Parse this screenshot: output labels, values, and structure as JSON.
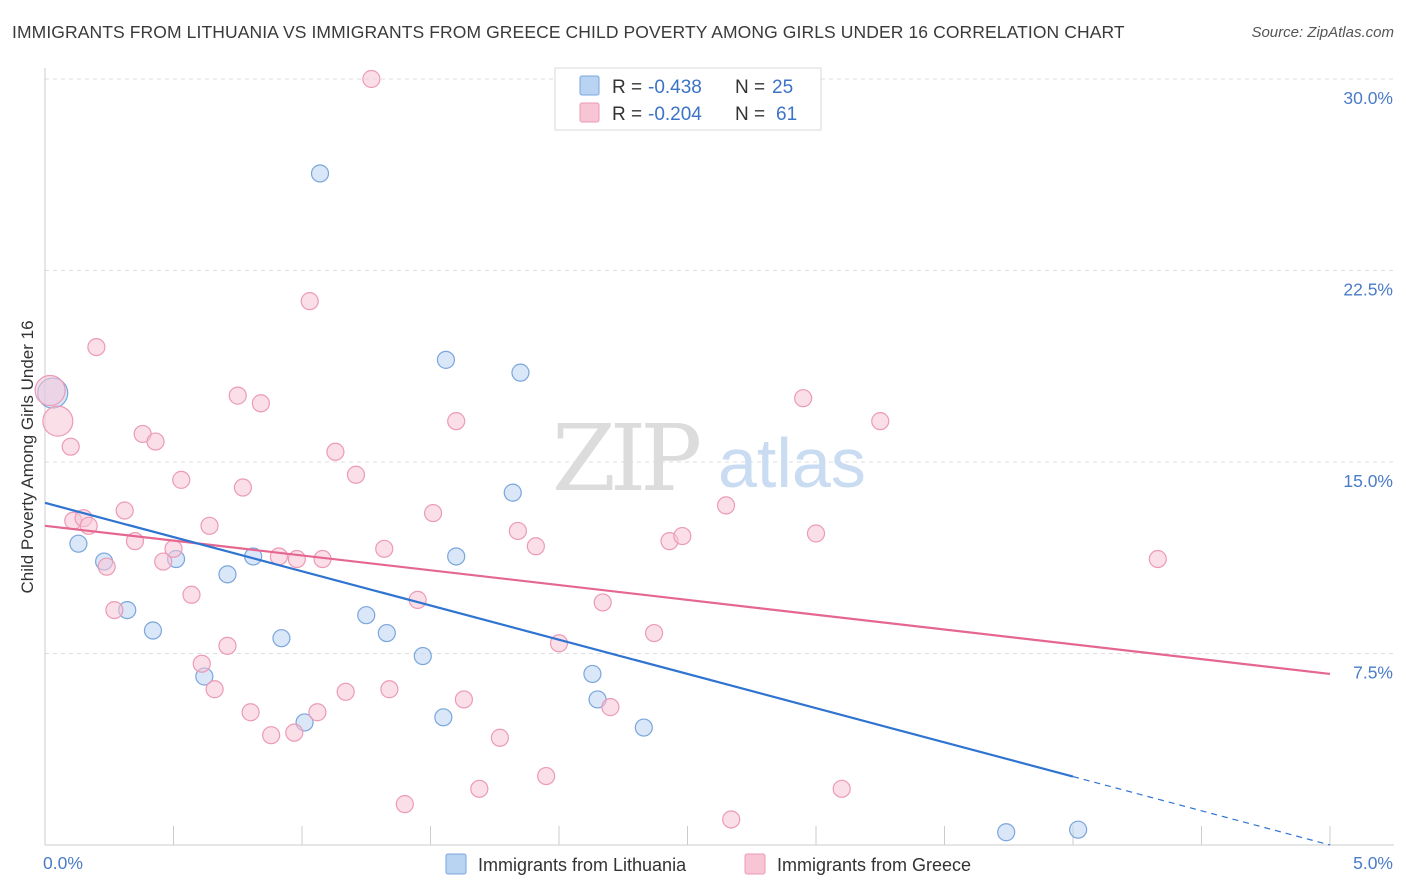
{
  "title": "IMMIGRANTS FROM LITHUANIA VS IMMIGRANTS FROM GREECE CHILD POVERTY AMONG GIRLS UNDER 16 CORRELATION CHART",
  "source": "Source: ZipAtlas.com",
  "watermark": {
    "zip": "ZIP",
    "atlas": "atlas"
  },
  "stats": [
    {
      "r_label": "R =",
      "r_value": "-0.438",
      "n_label": "N =",
      "n_value": "25"
    },
    {
      "r_label": "R =",
      "r_value": "-0.204",
      "n_label": "N =",
      "n_value": "61"
    }
  ],
  "colors": {
    "lithuania_fill": "#b9d3f3",
    "lithuania_stroke": "#7aa6dc",
    "lithuania_line": "#2f74d0",
    "greece_fill": "#f8c5d5",
    "greece_stroke": "#ec9ab6",
    "greece_line": "#e5668f",
    "grid": "#dddddd",
    "tick_label": "#4a7cc7"
  },
  "chart_data": {
    "type": "scatter",
    "title": "IMMIGRANTS FROM LITHUANIA VS IMMIGRANTS FROM GREECE CHILD POVERTY AMONG GIRLS UNDER 16 CORRELATION CHART",
    "xlabel": "",
    "ylabel": "Child Poverty Among Girls Under 16",
    "xlim": [
      0,
      5.0
    ],
    "ylim": [
      0,
      30.0
    ],
    "y_ticks": [
      7.5,
      15.0,
      22.5,
      30.0
    ],
    "y_tick_labels": [
      "7.5%",
      "15.0%",
      "22.5%",
      "30.0%"
    ],
    "x_tick_labels": [
      "0.0%",
      "5.0%"
    ],
    "legend": [
      "Immigrants from Lithuania",
      "Immigrants from Greece"
    ],
    "series": [
      {
        "name": "Immigrants from Lithuania",
        "r": -0.438,
        "n": 25,
        "trend": {
          "x0": 0.0,
          "y0": 13.4,
          "x1": 5.0,
          "y1": 0.0,
          "solid_until": 4.0
        },
        "points": [
          {
            "x": 0.03,
            "y": 17.7,
            "big": true
          },
          {
            "x": 0.13,
            "y": 11.8
          },
          {
            "x": 0.23,
            "y": 11.1
          },
          {
            "x": 0.32,
            "y": 9.2
          },
          {
            "x": 0.42,
            "y": 8.4
          },
          {
            "x": 0.51,
            "y": 11.2
          },
          {
            "x": 0.62,
            "y": 6.6
          },
          {
            "x": 0.71,
            "y": 10.6
          },
          {
            "x": 0.81,
            "y": 11.3
          },
          {
            "x": 0.92,
            "y": 8.1
          },
          {
            "x": 1.01,
            "y": 4.8
          },
          {
            "x": 1.07,
            "y": 26.3
          },
          {
            "x": 1.25,
            "y": 9.0
          },
          {
            "x": 1.33,
            "y": 8.3
          },
          {
            "x": 1.47,
            "y": 7.4
          },
          {
            "x": 1.55,
            "y": 5.0
          },
          {
            "x": 1.56,
            "y": 19.0
          },
          {
            "x": 1.6,
            "y": 11.3
          },
          {
            "x": 1.82,
            "y": 13.8
          },
          {
            "x": 1.85,
            "y": 18.5
          },
          {
            "x": 2.13,
            "y": 6.7
          },
          {
            "x": 2.15,
            "y": 5.7
          },
          {
            "x": 2.33,
            "y": 4.6
          },
          {
            "x": 3.74,
            "y": 0.5
          },
          {
            "x": 4.02,
            "y": 0.6
          }
        ]
      },
      {
        "name": "Immigrants from Greece",
        "r": -0.204,
        "n": 61,
        "trend": {
          "x0": 0.0,
          "y0": 12.5,
          "x1": 5.0,
          "y1": 6.7
        },
        "points": [
          {
            "x": 0.02,
            "y": 17.8,
            "big": true
          },
          {
            "x": 0.05,
            "y": 16.6,
            "big": true
          },
          {
            "x": 0.1,
            "y": 15.6
          },
          {
            "x": 0.11,
            "y": 12.7
          },
          {
            "x": 0.15,
            "y": 12.8
          },
          {
            "x": 0.17,
            "y": 12.5
          },
          {
            "x": 0.2,
            "y": 19.5
          },
          {
            "x": 0.24,
            "y": 10.9
          },
          {
            "x": 0.27,
            "y": 9.2
          },
          {
            "x": 0.31,
            "y": 13.1
          },
          {
            "x": 0.35,
            "y": 11.9
          },
          {
            "x": 0.38,
            "y": 16.1
          },
          {
            "x": 0.43,
            "y": 15.8
          },
          {
            "x": 0.46,
            "y": 11.1
          },
          {
            "x": 0.5,
            "y": 11.6
          },
          {
            "x": 0.53,
            "y": 14.3
          },
          {
            "x": 0.57,
            "y": 9.8
          },
          {
            "x": 0.61,
            "y": 7.1
          },
          {
            "x": 0.64,
            "y": 12.5
          },
          {
            "x": 0.66,
            "y": 6.1
          },
          {
            "x": 0.71,
            "y": 7.8
          },
          {
            "x": 0.75,
            "y": 17.6
          },
          {
            "x": 0.77,
            "y": 14.0
          },
          {
            "x": 0.8,
            "y": 5.2
          },
          {
            "x": 0.84,
            "y": 17.3
          },
          {
            "x": 0.88,
            "y": 4.3
          },
          {
            "x": 0.91,
            "y": 11.3
          },
          {
            "x": 0.97,
            "y": 4.4
          },
          {
            "x": 0.98,
            "y": 11.2
          },
          {
            "x": 1.03,
            "y": 21.3
          },
          {
            "x": 1.06,
            "y": 5.2
          },
          {
            "x": 1.08,
            "y": 11.2
          },
          {
            "x": 1.13,
            "y": 15.4
          },
          {
            "x": 1.17,
            "y": 6.0
          },
          {
            "x": 1.21,
            "y": 14.5
          },
          {
            "x": 1.27,
            "y": 30.0
          },
          {
            "x": 1.32,
            "y": 11.6
          },
          {
            "x": 1.34,
            "y": 6.1
          },
          {
            "x": 1.4,
            "y": 1.6
          },
          {
            "x": 1.45,
            "y": 9.6
          },
          {
            "x": 1.51,
            "y": 13.0
          },
          {
            "x": 1.6,
            "y": 16.6
          },
          {
            "x": 1.63,
            "y": 5.7
          },
          {
            "x": 1.69,
            "y": 2.2
          },
          {
            "x": 1.77,
            "y": 4.2
          },
          {
            "x": 1.84,
            "y": 12.3
          },
          {
            "x": 1.91,
            "y": 11.7
          },
          {
            "x": 1.95,
            "y": 2.7
          },
          {
            "x": 2.0,
            "y": 7.9
          },
          {
            "x": 2.17,
            "y": 9.5
          },
          {
            "x": 2.2,
            "y": 5.4
          },
          {
            "x": 2.37,
            "y": 8.3
          },
          {
            "x": 2.43,
            "y": 11.9
          },
          {
            "x": 2.48,
            "y": 12.1
          },
          {
            "x": 2.65,
            "y": 13.3
          },
          {
            "x": 2.67,
            "y": 1.0
          },
          {
            "x": 2.95,
            "y": 17.5
          },
          {
            "x": 3.0,
            "y": 12.2
          },
          {
            "x": 3.1,
            "y": 2.2
          },
          {
            "x": 3.25,
            "y": 16.6
          },
          {
            "x": 4.33,
            "y": 11.2
          }
        ]
      }
    ]
  }
}
